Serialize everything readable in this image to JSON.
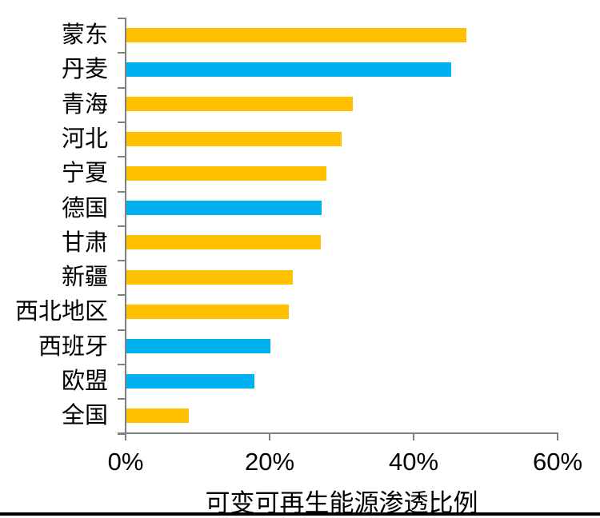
{
  "chart_data": {
    "type": "bar",
    "orientation": "horizontal",
    "title": "",
    "xlabel": "可变可再生能源渗透比例",
    "ylabel": "",
    "categories": [
      "蒙东",
      "丹麦",
      "青海",
      "河北",
      "宁夏",
      "德国",
      "甘肃",
      "新疆",
      "西北地区",
      "西班牙",
      "欧盟",
      "全国"
    ],
    "values": [
      47.2,
      45.1,
      31.4,
      29.9,
      27.8,
      27.1,
      27.0,
      23.1,
      22.6,
      20.0,
      17.8,
      8.7
    ],
    "unit": "%",
    "bar_colors": [
      "#FFC000",
      "#00B0F0",
      "#FFC000",
      "#FFC000",
      "#FFC000",
      "#00B0F0",
      "#FFC000",
      "#FFC000",
      "#FFC000",
      "#00B0F0",
      "#00B0F0",
      "#FFC000"
    ],
    "color_legend": {
      "yellow_series": "#FFC000",
      "blue_series": "#00B0F0"
    },
    "xlim": [
      0,
      60
    ],
    "x_tick_labels": [
      "0%",
      "20%",
      "40%",
      "60%"
    ],
    "x_tick_values": [
      0,
      20,
      40,
      60
    ],
    "grid": false,
    "legend": false,
    "axis_color": "#808080",
    "text_color": "#000000",
    "bottom_rule_color": "#000000"
  }
}
